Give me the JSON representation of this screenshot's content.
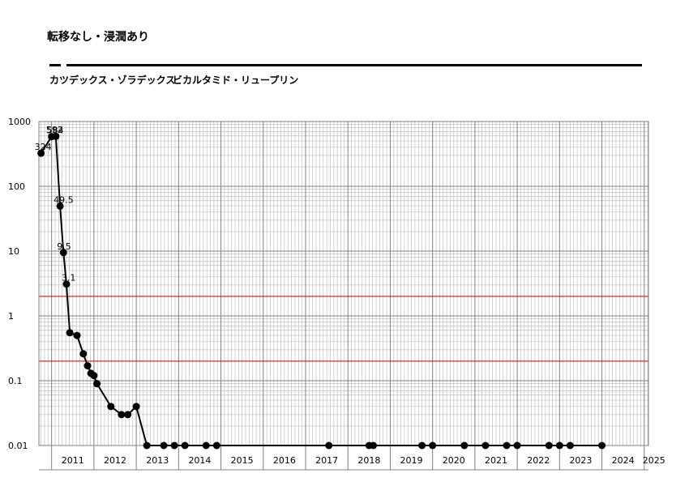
{
  "title": "転移なし・浸潤あり",
  "treatments": [
    {
      "label": "カツデックス・ゾラデックス"
    },
    {
      "label": "ビカルタミド・リュープリン"
    }
  ],
  "chart_data": {
    "type": "line",
    "yscale": "log",
    "ylim": [
      0.01,
      1000
    ],
    "xlim": [
      2010.7,
      2025.1
    ],
    "y_tick_labels": [
      "0.01",
      "0.1",
      "1",
      "10",
      "100",
      "1000"
    ],
    "x_tick_labels": [
      "2011",
      "2012",
      "2013",
      "2014",
      "2015",
      "2016",
      "2017",
      "2018",
      "2019",
      "2020",
      "2021",
      "2022",
      "2023",
      "2024",
      "2025"
    ],
    "reference_lines": [
      2,
      0.2
    ],
    "colors": {
      "line": "#000000",
      "marker": "#000000",
      "reference": "#cc0000",
      "grid_major": "#808080",
      "grid_minor": "#c0c0c0"
    },
    "points": [
      {
        "x": 2010.75,
        "y": 324,
        "label": "324"
      },
      {
        "x": 2011.0,
        "y": 584,
        "label": "584"
      },
      {
        "x": 2011.1,
        "y": 592,
        "label": "592"
      },
      {
        "x": 2011.2,
        "y": 49.5,
        "label": "49.5"
      },
      {
        "x": 2011.28,
        "y": 9.5,
        "label": "9.5"
      },
      {
        "x": 2011.35,
        "y": 3.1,
        "label": "3.1"
      },
      {
        "x": 2011.43,
        "y": 0.55
      },
      {
        "x": 2011.6,
        "y": 0.5
      },
      {
        "x": 2011.75,
        "y": 0.26
      },
      {
        "x": 2011.85,
        "y": 0.17
      },
      {
        "x": 2011.93,
        "y": 0.13
      },
      {
        "x": 2012.0,
        "y": 0.12
      },
      {
        "x": 2012.07,
        "y": 0.09
      },
      {
        "x": 2012.4,
        "y": 0.04
      },
      {
        "x": 2012.65,
        "y": 0.03
      },
      {
        "x": 2012.8,
        "y": 0.03
      },
      {
        "x": 2013.0,
        "y": 0.04
      },
      {
        "x": 2013.25,
        "y": 0.01
      },
      {
        "x": 2013.65,
        "y": 0.01
      },
      {
        "x": 2013.9,
        "y": 0.01
      },
      {
        "x": 2014.15,
        "y": 0.01
      },
      {
        "x": 2014.65,
        "y": 0.01
      },
      {
        "x": 2014.9,
        "y": 0.01
      },
      {
        "x": 2017.55,
        "y": 0.01
      },
      {
        "x": 2018.5,
        "y": 0.01
      },
      {
        "x": 2018.6,
        "y": 0.01
      },
      {
        "x": 2019.75,
        "y": 0.01
      },
      {
        "x": 2020.0,
        "y": 0.01
      },
      {
        "x": 2020.75,
        "y": 0.01
      },
      {
        "x": 2021.25,
        "y": 0.01
      },
      {
        "x": 2021.75,
        "y": 0.01
      },
      {
        "x": 2022.0,
        "y": 0.01
      },
      {
        "x": 2022.75,
        "y": 0.01
      },
      {
        "x": 2023.0,
        "y": 0.01
      },
      {
        "x": 2023.25,
        "y": 0.01
      },
      {
        "x": 2024.0,
        "y": 0.01
      }
    ]
  }
}
